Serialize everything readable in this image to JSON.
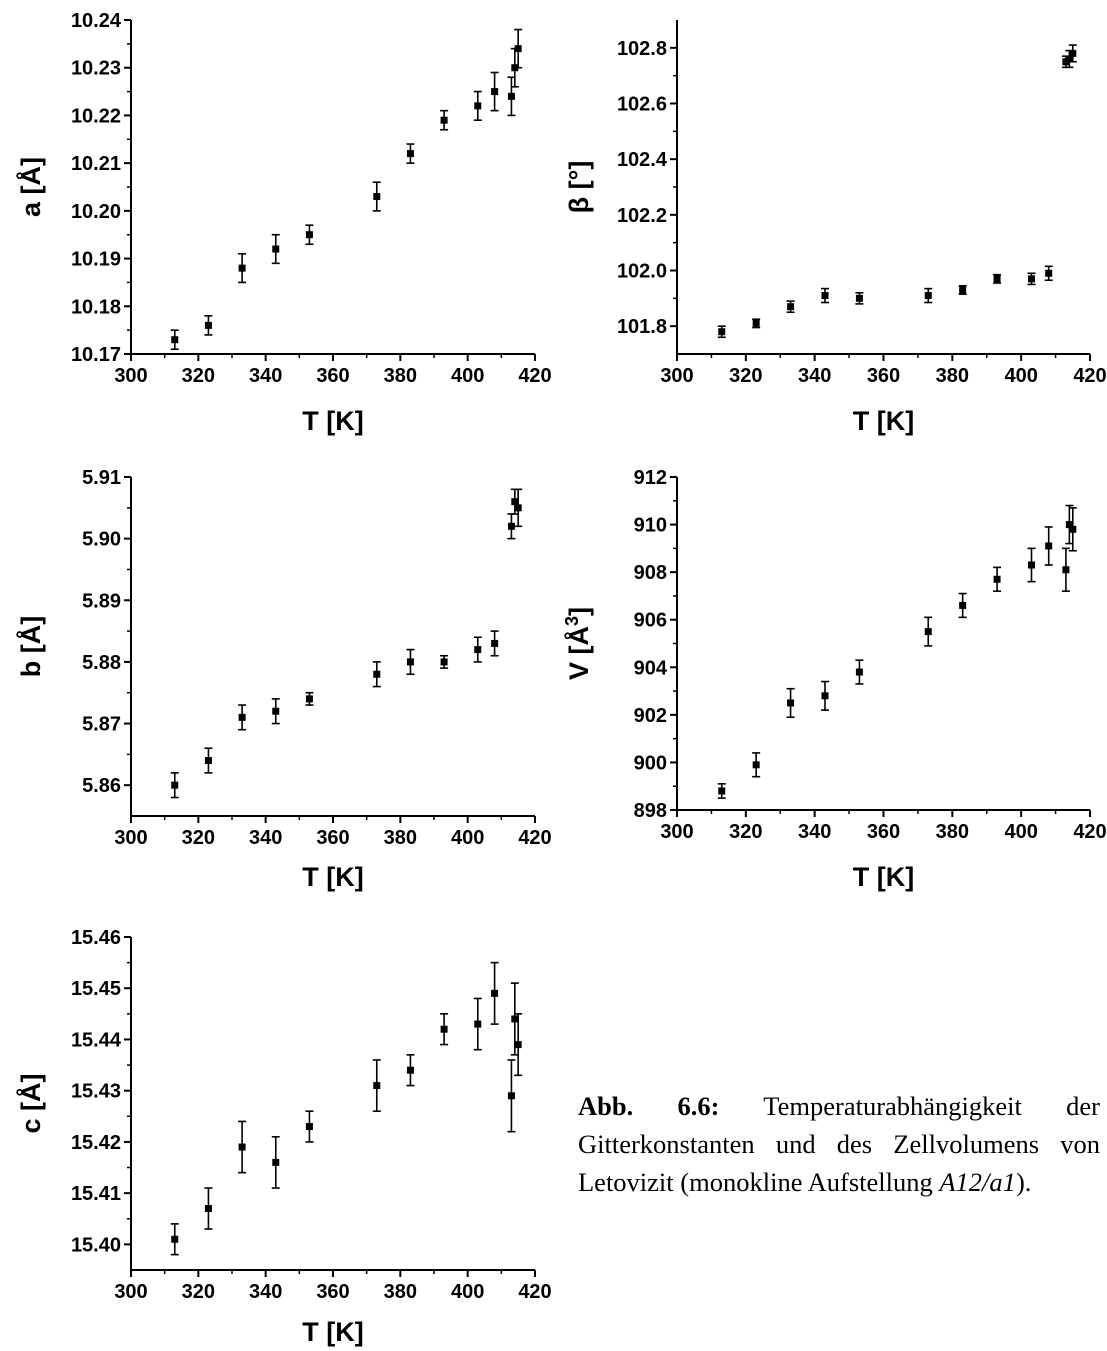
{
  "caption": {
    "label": "Abb. 6.6:",
    "text": "Temperaturabhängigkeit der Gitterkonstanten und des Zellvolumens von Letovizit (monokline Aufstellung",
    "setting": "A12/a1",
    "end": ")."
  },
  "chart_data": [
    {
      "type": "scatter",
      "title": "",
      "xlabel": "T [K]",
      "ylabel": "a [Å]",
      "xlim": [
        300,
        420
      ],
      "ylim": [
        10.17,
        10.24
      ],
      "x_ticks": [
        300,
        320,
        340,
        360,
        380,
        400,
        420
      ],
      "y_ticks": [
        "10.17",
        "10.18",
        "10.19",
        "10.20",
        "10.21",
        "10.22",
        "10.23",
        "10.24"
      ],
      "grid": false,
      "points": [
        {
          "x": 313,
          "y": 10.173,
          "err": 0.002
        },
        {
          "x": 323,
          "y": 10.176,
          "err": 0.002
        },
        {
          "x": 333,
          "y": 10.188,
          "err": 0.003
        },
        {
          "x": 343,
          "y": 10.192,
          "err": 0.003
        },
        {
          "x": 353,
          "y": 10.195,
          "err": 0.002
        },
        {
          "x": 373,
          "y": 10.203,
          "err": 0.003
        },
        {
          "x": 383,
          "y": 10.212,
          "err": 0.002
        },
        {
          "x": 393,
          "y": 10.219,
          "err": 0.002
        },
        {
          "x": 403,
          "y": 10.222,
          "err": 0.003
        },
        {
          "x": 408,
          "y": 10.225,
          "err": 0.004
        },
        {
          "x": 413,
          "y": 10.224,
          "err": 0.004
        },
        {
          "x": 414,
          "y": 10.23,
          "err": 0.004
        },
        {
          "x": 415,
          "y": 10.234,
          "err": 0.004
        }
      ]
    },
    {
      "type": "scatter",
      "title": "",
      "xlabel": "T [K]",
      "ylabel": "β [°]",
      "xlim": [
        300,
        420
      ],
      "ylim": [
        101.7,
        102.9
      ],
      "x_ticks": [
        300,
        320,
        340,
        360,
        380,
        400,
        420
      ],
      "y_ticks": [
        "101.8",
        "102.0",
        "102.2",
        "102.4",
        "102.6",
        "102.8"
      ],
      "grid": false,
      "points": [
        {
          "x": 313,
          "y": 101.78,
          "err": 0.02
        },
        {
          "x": 323,
          "y": 101.81,
          "err": 0.015
        },
        {
          "x": 333,
          "y": 101.87,
          "err": 0.02
        },
        {
          "x": 343,
          "y": 101.91,
          "err": 0.025
        },
        {
          "x": 353,
          "y": 101.9,
          "err": 0.02
        },
        {
          "x": 373,
          "y": 101.91,
          "err": 0.025
        },
        {
          "x": 383,
          "y": 101.93,
          "err": 0.015
        },
        {
          "x": 393,
          "y": 101.97,
          "err": 0.015
        },
        {
          "x": 403,
          "y": 101.97,
          "err": 0.02
        },
        {
          "x": 408,
          "y": 101.99,
          "err": 0.025
        },
        {
          "x": 413,
          "y": 102.75,
          "err": 0.02
        },
        {
          "x": 414,
          "y": 102.76,
          "err": 0.03
        },
        {
          "x": 415,
          "y": 102.78,
          "err": 0.03
        }
      ]
    },
    {
      "type": "scatter",
      "title": "",
      "xlabel": "T [K]",
      "ylabel": "b [Å]",
      "xlim": [
        300,
        420
      ],
      "ylim": [
        5.855,
        5.91
      ],
      "x_ticks": [
        300,
        320,
        340,
        360,
        380,
        400,
        420
      ],
      "y_ticks": [
        "5.86",
        "5.87",
        "5.88",
        "5.89",
        "5.90",
        "5.91"
      ],
      "grid": false,
      "points": [
        {
          "x": 313,
          "y": 5.86,
          "err": 0.002
        },
        {
          "x": 323,
          "y": 5.864,
          "err": 0.002
        },
        {
          "x": 333,
          "y": 5.871,
          "err": 0.002
        },
        {
          "x": 343,
          "y": 5.872,
          "err": 0.002
        },
        {
          "x": 353,
          "y": 5.874,
          "err": 0.001
        },
        {
          "x": 373,
          "y": 5.878,
          "err": 0.002
        },
        {
          "x": 383,
          "y": 5.88,
          "err": 0.002
        },
        {
          "x": 393,
          "y": 5.88,
          "err": 0.001
        },
        {
          "x": 403,
          "y": 5.882,
          "err": 0.002
        },
        {
          "x": 408,
          "y": 5.883,
          "err": 0.002
        },
        {
          "x": 413,
          "y": 5.902,
          "err": 0.002
        },
        {
          "x": 414,
          "y": 5.906,
          "err": 0.002
        },
        {
          "x": 415,
          "y": 5.905,
          "err": 0.003
        }
      ]
    },
    {
      "type": "scatter",
      "title": "",
      "xlabel": "T [K]",
      "ylabel": "V [Å3]",
      "xlim": [
        300,
        420
      ],
      "ylim": [
        898,
        912
      ],
      "x_ticks": [
        300,
        320,
        340,
        360,
        380,
        400,
        420
      ],
      "y_ticks": [
        "898",
        "900",
        "902",
        "904",
        "906",
        "908",
        "910",
        "912"
      ],
      "grid": false,
      "points": [
        {
          "x": 313,
          "y": 898.8,
          "err": 0.3
        },
        {
          "x": 323,
          "y": 899.9,
          "err": 0.5
        },
        {
          "x": 333,
          "y": 902.5,
          "err": 0.6
        },
        {
          "x": 343,
          "y": 902.8,
          "err": 0.6
        },
        {
          "x": 353,
          "y": 903.8,
          "err": 0.5
        },
        {
          "x": 373,
          "y": 905.5,
          "err": 0.6
        },
        {
          "x": 383,
          "y": 906.6,
          "err": 0.5
        },
        {
          "x": 393,
          "y": 907.7,
          "err": 0.5
        },
        {
          "x": 403,
          "y": 908.3,
          "err": 0.7
        },
        {
          "x": 408,
          "y": 909.1,
          "err": 0.8
        },
        {
          "x": 413,
          "y": 908.1,
          "err": 0.9
        },
        {
          "x": 414,
          "y": 910.0,
          "err": 0.8
        },
        {
          "x": 415,
          "y": 909.8,
          "err": 0.9
        }
      ]
    },
    {
      "type": "scatter",
      "title": "",
      "xlabel": "T [K]",
      "ylabel": "c [Å]",
      "xlim": [
        300,
        420
      ],
      "ylim": [
        15.395,
        15.46
      ],
      "x_ticks": [
        300,
        320,
        340,
        360,
        380,
        400,
        420
      ],
      "y_ticks": [
        "15.40",
        "15.41",
        "15.42",
        "15.43",
        "15.44",
        "15.45",
        "15.46"
      ],
      "grid": false,
      "points": [
        {
          "x": 313,
          "y": 15.401,
          "err": 0.003
        },
        {
          "x": 323,
          "y": 15.407,
          "err": 0.004
        },
        {
          "x": 333,
          "y": 15.419,
          "err": 0.005
        },
        {
          "x": 343,
          "y": 15.416,
          "err": 0.005
        },
        {
          "x": 353,
          "y": 15.423,
          "err": 0.003
        },
        {
          "x": 373,
          "y": 15.431,
          "err": 0.005
        },
        {
          "x": 383,
          "y": 15.434,
          "err": 0.003
        },
        {
          "x": 393,
          "y": 15.442,
          "err": 0.003
        },
        {
          "x": 403,
          "y": 15.443,
          "err": 0.005
        },
        {
          "x": 408,
          "y": 15.449,
          "err": 0.006
        },
        {
          "x": 413,
          "y": 15.429,
          "err": 0.007
        },
        {
          "x": 414,
          "y": 15.444,
          "err": 0.007
        },
        {
          "x": 415,
          "y": 15.439,
          "err": 0.006
        }
      ]
    }
  ]
}
